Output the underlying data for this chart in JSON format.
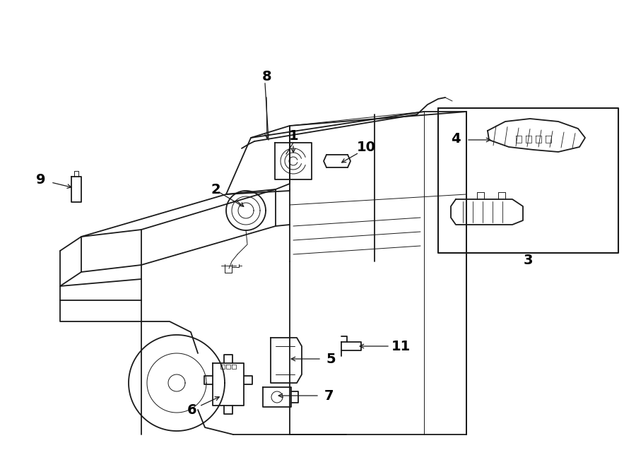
{
  "bg_color": "#ffffff",
  "line_color": "#1a1a1a",
  "fig_width": 9.0,
  "fig_height": 6.61,
  "lw_main": 1.3,
  "lw_thin": 0.7,
  "label_fontsize": 14
}
